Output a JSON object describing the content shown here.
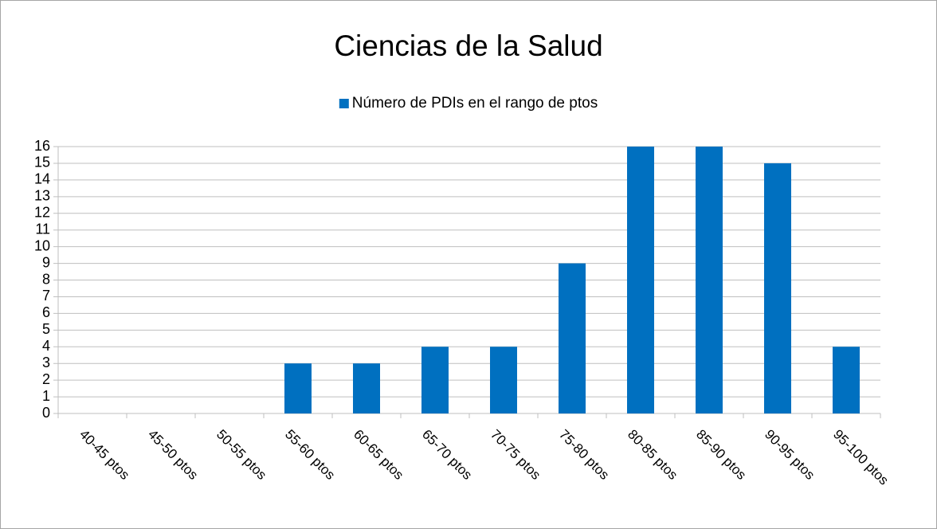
{
  "chart_data": {
    "type": "bar",
    "title": "Ciencias de la Salud",
    "categories": [
      "40-45 ptos",
      "45-50 ptos",
      "50-55 ptos",
      "55-60 ptos",
      "60-65 ptos",
      "65-70 ptos",
      "70-75 ptos",
      "75-80 ptos",
      "80-85 ptos",
      "85-90 ptos",
      "90-95 ptos",
      "95-100 ptos"
    ],
    "series": [
      {
        "name": "Número de PDIs en el rango de ptos",
        "color": "#0070c0",
        "values": [
          0,
          0,
          0,
          3,
          3,
          4,
          4,
          9,
          16,
          16,
          15,
          4
        ]
      }
    ],
    "ylim": [
      0,
      16
    ],
    "yticks": [
      0,
      1,
      2,
      3,
      4,
      5,
      6,
      7,
      8,
      9,
      10,
      11,
      12,
      13,
      14,
      15,
      16
    ],
    "grid": true,
    "legend": "top"
  }
}
